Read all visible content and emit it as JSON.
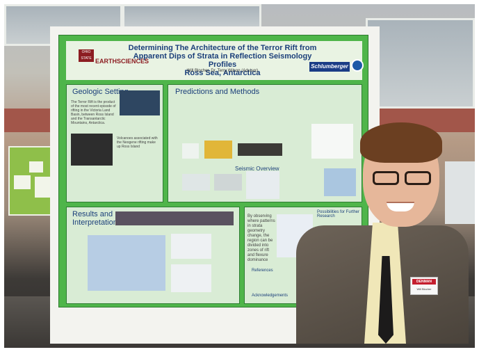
{
  "poster": {
    "title": "Determining The Architecture of the Terror Rift from Apparent Dips of Strata in Reflection Seismology Profiles",
    "subtitle": "Ross Sea, Antarctica",
    "authors": "Will Blocher, Dr. Terry Wilson (Advisor)",
    "logo_university": "OHIO STATE",
    "logo_department": "EARTHSCIENCES",
    "logo_sponsor": "Schlumberger",
    "sections": {
      "geologic": "Geologic Setting",
      "predictions": "Predictions and Methods",
      "seismic": "Seismic Overview",
      "results": "Results and Interpretation",
      "future": "Possibilities for Further Research",
      "references": "References",
      "acknowledgements": "Acknowledgements"
    },
    "body_snippets": {
      "geologic_text": "The Terror Rift is the product of the most recent episode of rifting in the Victoria Land Basin, between Ross Island and the Transantarctic Mountains, Antarctica.",
      "volcanoes_text": "Volcanoes associated with the Neogene rifting make up Ross Island",
      "by_observing": "By observing where patterns in strata geometry change, the region can be divided into zones of rift and flexure dominance"
    }
  },
  "badge": {
    "org": "DENMAN",
    "name": "Will Blocher"
  }
}
